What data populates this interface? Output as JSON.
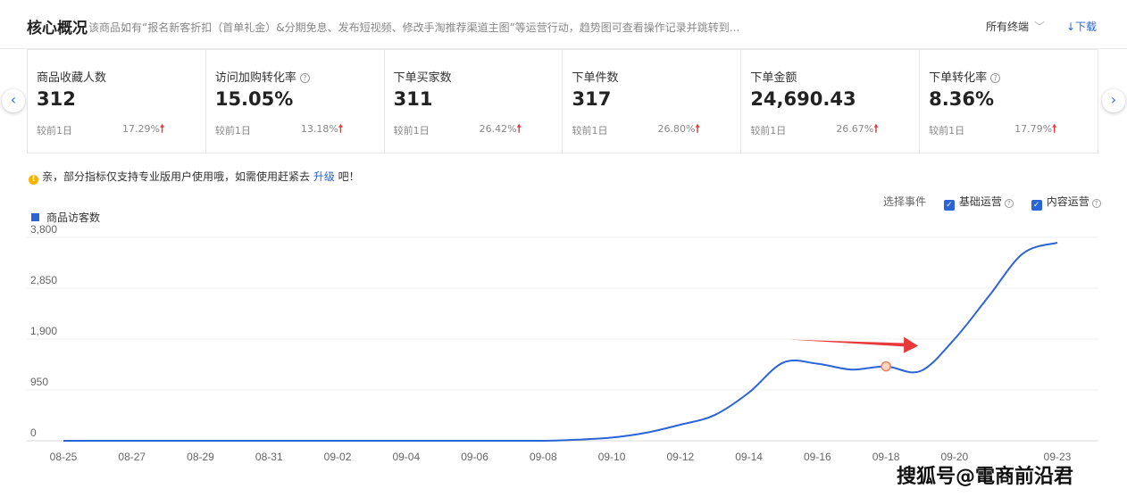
{
  "header": {
    "title": "核心概况",
    "subtitle": "该商品如有“报名新客折扣（首单礼金）&分期免息、发布短视频、修改手淘推荐渠道主图”等运营行动，趋势图可查看操作记录并跳转到...",
    "terminal_select": "所有终端",
    "download": "↓下载"
  },
  "kpis": [
    {
      "label": "商品收藏人数",
      "value": "312",
      "compare": "较前1日",
      "change": "17.29%",
      "help": false
    },
    {
      "label": "访问加购转化率",
      "value": "15.05%",
      "compare": "较前1日",
      "change": "13.18%",
      "help": true
    },
    {
      "label": "下单买家数",
      "value": "311",
      "compare": "较前1日",
      "change": "26.42%",
      "help": false
    },
    {
      "label": "下单件数",
      "value": "317",
      "compare": "较前1日",
      "change": "26.80%",
      "help": false
    },
    {
      "label": "下单金额",
      "value": "24,690.43",
      "compare": "较前1日",
      "change": "26.67%",
      "help": false
    },
    {
      "label": "下单转化率",
      "value": "8.36%",
      "compare": "较前1日",
      "change": "17.79%",
      "help": true
    }
  ],
  "notice": {
    "text_before": "亲，部分指标仅支持专业版用户使用哦，如需使用赶紧去 ",
    "link": "升级",
    "text_after": " 吧！"
  },
  "events": {
    "label": "选择事件",
    "items": [
      "基础运营",
      "内容运营"
    ]
  },
  "legend": {
    "series_name": "商品访客数"
  },
  "watermark": "搜狐号@電商前沿君",
  "colors": {
    "accent": "#2b64d7",
    "up": "#e83a3a",
    "marker": "#f08050",
    "annotation_arrow": "#e83a3a"
  },
  "chart_data": {
    "type": "line",
    "x": [
      "08-25",
      "08-26",
      "08-27",
      "08-28",
      "08-29",
      "08-30",
      "08-31",
      "09-01",
      "09-02",
      "09-03",
      "09-04",
      "09-05",
      "09-06",
      "09-07",
      "09-08",
      "09-09",
      "09-10",
      "09-11",
      "09-12",
      "09-13",
      "09-14",
      "09-15",
      "09-16",
      "09-17",
      "09-18",
      "09-19",
      "09-20",
      "09-21",
      "09-22",
      "09-23"
    ],
    "x_tick_labels": [
      "08-25",
      "08-27",
      "08-29",
      "08-31",
      "09-02",
      "09-04",
      "09-06",
      "09-08",
      "09-10",
      "09-12",
      "09-14",
      "09-16",
      "09-18",
      "09-20",
      "09-23"
    ],
    "series": [
      {
        "name": "商品访客数",
        "values": [
          0,
          0,
          0,
          0,
          0,
          0,
          0,
          0,
          0,
          0,
          0,
          0,
          0,
          0,
          0,
          20,
          60,
          150,
          300,
          480,
          900,
          1460,
          1440,
          1330,
          1390,
          1300,
          1900,
          2700,
          3500,
          3700
        ]
      }
    ],
    "y_ticks": [
      "0",
      "950",
      "1,900",
      "2,850",
      "3,800"
    ],
    "ylim": [
      0,
      3800
    ],
    "grid": true,
    "highlight_point": "09-18",
    "annotation": "red arrow pointing right toward 09-19"
  }
}
